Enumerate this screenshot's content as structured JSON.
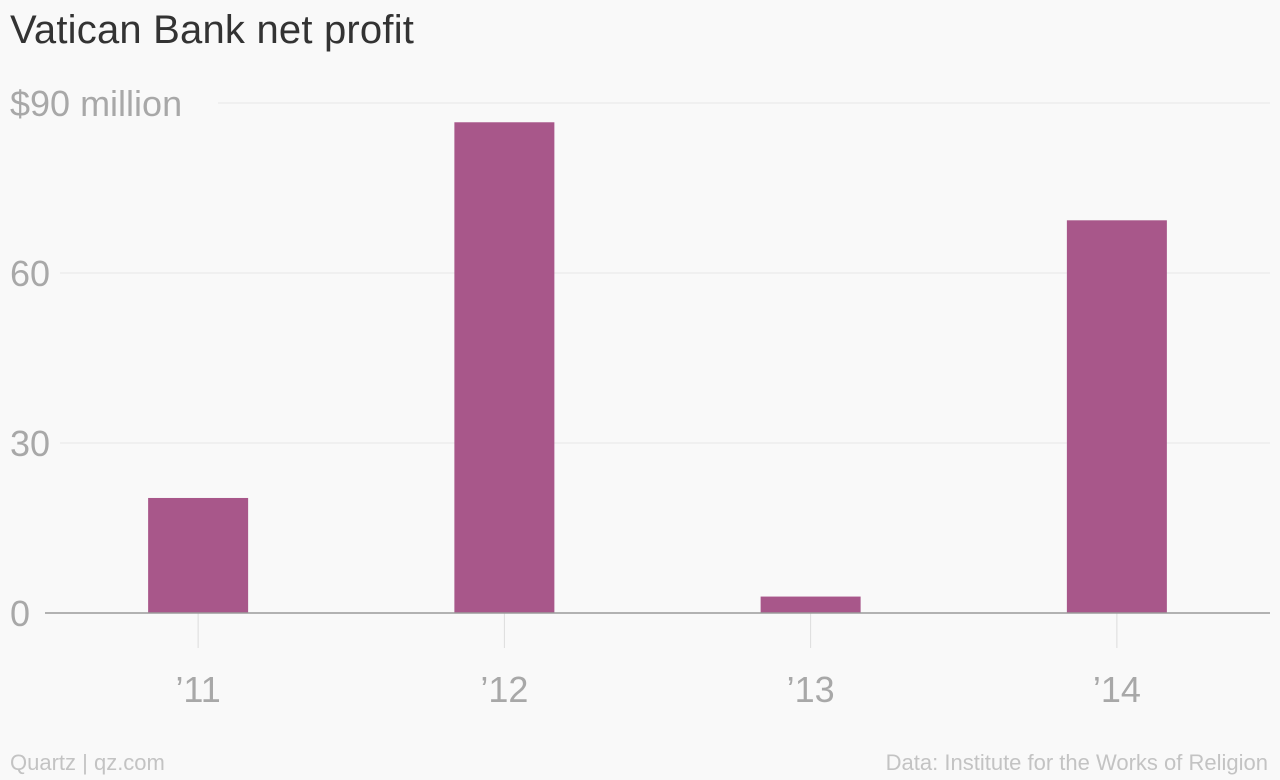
{
  "chart_data": {
    "type": "bar",
    "title": "Vatican Bank net profit",
    "categories": [
      "’11",
      "’12",
      "’13",
      "’14"
    ],
    "values": [
      20.3,
      86.6,
      2.9,
      69.3
    ],
    "ylim": [
      0,
      90
    ],
    "yticks": [
      0,
      30,
      60,
      90
    ],
    "ytick_labels": [
      "0",
      "30",
      "60",
      "$90 million"
    ],
    "grid": true,
    "bar_color": "#a8578a",
    "grid_color": "#e8e8e8",
    "axis_color": "#9a9a9a"
  },
  "footer": {
    "source_left": "Quartz | qz.com",
    "source_right": "Data: Institute for the Works of Religion"
  }
}
